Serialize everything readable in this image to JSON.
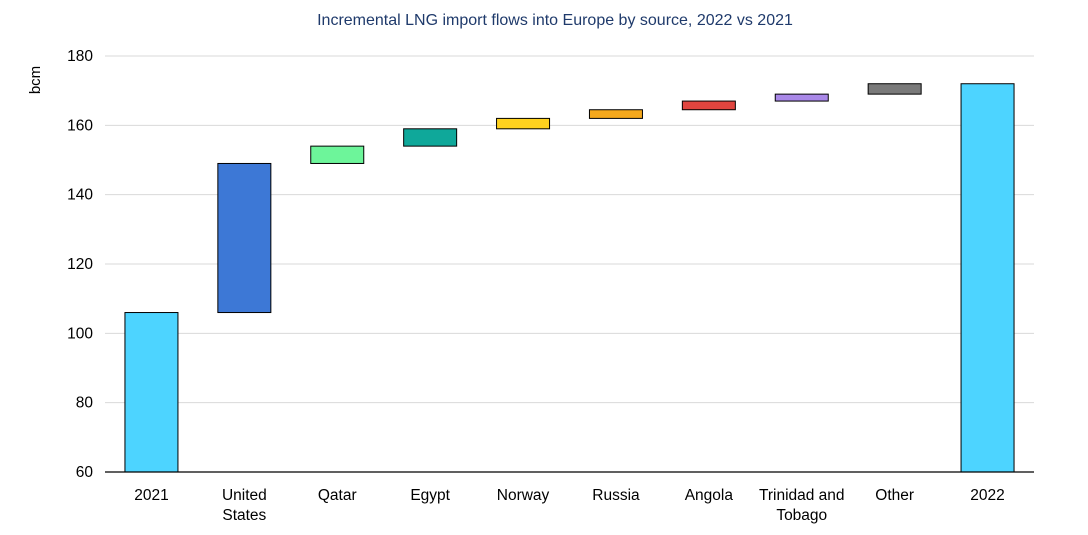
{
  "chart_data": {
    "type": "bar",
    "subtype": "waterfall",
    "title": "Incremental LNG import flows into Europe by source, 2022 vs 2021",
    "xlabel": "",
    "ylabel": "bcm",
    "ylim": [
      60,
      180
    ],
    "yticks": [
      60,
      80,
      100,
      120,
      140,
      160,
      180
    ],
    "grid": true,
    "legend": "none",
    "categories": [
      [
        "2021"
      ],
      [
        "United",
        "States"
      ],
      [
        "Qatar"
      ],
      [
        "Egypt"
      ],
      [
        "Norway"
      ],
      [
        "Russia"
      ],
      [
        "Angola"
      ],
      [
        "Trinidad and",
        "Tobago"
      ],
      [
        "Other"
      ],
      [
        "2022"
      ]
    ],
    "bars": [
      {
        "kind": "total",
        "start": 60,
        "end": 106,
        "color": "#4dd4ff"
      },
      {
        "kind": "increment",
        "start": 106,
        "end": 149,
        "color": "#3d78d6"
      },
      {
        "kind": "increment",
        "start": 149,
        "end": 154,
        "color": "#6df59a"
      },
      {
        "kind": "increment",
        "start": 154,
        "end": 159,
        "color": "#0fa89a"
      },
      {
        "kind": "increment",
        "start": 159,
        "end": 162,
        "color": "#ffd21f"
      },
      {
        "kind": "increment",
        "start": 162,
        "end": 164.5,
        "color": "#f5a81c"
      },
      {
        "kind": "increment",
        "start": 164.5,
        "end": 167,
        "color": "#e0453f"
      },
      {
        "kind": "increment",
        "start": 167,
        "end": 169,
        "color": "#a988e8"
      },
      {
        "kind": "increment",
        "start": 169,
        "end": 172,
        "color": "#7a7a7a"
      },
      {
        "kind": "total",
        "start": 60,
        "end": 172,
        "color": "#4dd4ff"
      }
    ]
  }
}
